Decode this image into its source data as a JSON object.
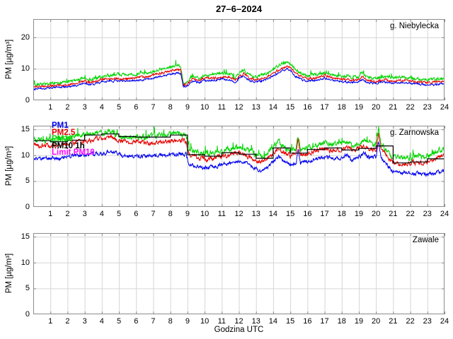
{
  "title": "27–6–2024",
  "xlabel": "Godzina UTC",
  "colors": {
    "pm1": "#0000ee",
    "pm2_5": "#e60000",
    "pm10": "#00d400",
    "pm10_1h": "#000000",
    "limit_pm10": "#ff00ff",
    "frame": "#8c8c8c",
    "grid": "#d6d6d6"
  },
  "legend": {
    "location": "upper-left of middle panel",
    "entries": [
      {
        "label": "PM1",
        "color": "#0000ee"
      },
      {
        "label": "PM2.5",
        "color": "#e60000"
      },
      {
        "label": "PM10",
        "color": "#00d400"
      },
      {
        "label": "PM10 1h",
        "color": "#000000"
      },
      {
        "label": "Limit PM10",
        "color": "#ff00ff"
      }
    ]
  },
  "chart_data": [
    {
      "type": "line",
      "station": "g. Niebylecka",
      "xlabel": "",
      "ylabel": "PM [µg/m³]",
      "xlim": [
        0,
        24
      ],
      "ylim": [
        0,
        25.8
      ],
      "xticks": [
        1,
        2,
        3,
        4,
        5,
        6,
        7,
        8,
        9,
        10,
        11,
        12,
        13,
        14,
        15,
        16,
        17,
        18,
        19,
        20,
        21,
        22,
        23,
        24
      ],
      "yticks": [
        0,
        10,
        20
      ],
      "grid": true,
      "series": [
        {
          "name": "PM1",
          "color": "#0000ee",
          "noise": 0.32,
          "x": [
            0,
            0.5,
            1,
            1.5,
            2,
            2.5,
            3,
            3.3,
            3.6,
            4,
            4.5,
            5,
            5.5,
            6,
            6.5,
            7,
            7.5,
            8,
            8.4,
            8.6,
            8.75,
            9,
            9.3,
            9.7,
            10,
            10.5,
            11,
            11.5,
            11.8,
            12,
            12.3,
            12.6,
            12.9,
            13.2,
            13.6,
            14,
            14.4,
            14.8,
            15,
            15.3,
            15.7,
            16,
            16.5,
            17,
            17.3,
            17.7,
            18,
            18.5,
            19,
            19.2,
            19.5,
            20,
            20.5,
            21,
            21.5,
            22,
            22.5,
            23,
            23.5,
            24
          ],
          "y": [
            3.6,
            3.8,
            4.0,
            4.1,
            4.4,
            4.7,
            5.5,
            4.9,
            5.2,
            5.8,
            6.0,
            6.3,
            6.1,
            6.4,
            6.6,
            7.1,
            7.8,
            8.3,
            8.8,
            8.5,
            4.4,
            4.7,
            6.1,
            5.5,
            6.2,
            6.4,
            6.7,
            6.5,
            5.6,
            6.9,
            7.7,
            6.4,
            5.7,
            6.0,
            6.7,
            7.7,
            9.0,
            9.9,
            9.4,
            7.7,
            6.5,
            6.2,
            6.3,
            7.1,
            6.6,
            6.1,
            5.9,
            5.8,
            5.8,
            6.7,
            5.6,
            5.4,
            5.7,
            5.5,
            5.6,
            5.4,
            5.2,
            5.0,
            5.1,
            5.2
          ]
        },
        {
          "name": "PM2.5",
          "color": "#e60000",
          "noise": 0.38,
          "x": [
            0,
            0.5,
            1,
            1.5,
            2,
            2.5,
            3,
            3.3,
            3.6,
            4,
            4.5,
            5,
            5.5,
            6,
            6.5,
            7,
            7.5,
            8,
            8.4,
            8.6,
            8.75,
            9,
            9.3,
            9.7,
            10,
            10.5,
            11,
            11.5,
            11.8,
            12,
            12.3,
            12.6,
            12.9,
            13.2,
            13.6,
            14,
            14.4,
            14.8,
            15,
            15.3,
            15.7,
            16,
            16.5,
            17,
            17.3,
            17.7,
            18,
            18.5,
            19,
            19.2,
            19.5,
            20,
            20.5,
            21,
            21.5,
            22,
            22.5,
            23,
            23.5,
            24
          ],
          "y": [
            4.1,
            4.4,
            4.6,
            4.7,
            5.0,
            5.4,
            6.2,
            5.6,
            5.9,
            6.5,
            6.7,
            7.0,
            6.8,
            7.2,
            7.4,
            8.0,
            8.7,
            9.3,
            9.8,
            9.5,
            5.0,
            5.3,
            6.9,
            6.2,
            7.0,
            7.2,
            7.5,
            7.3,
            6.3,
            7.7,
            8.6,
            7.2,
            6.5,
            6.8,
            7.5,
            8.6,
            10.0,
            11.0,
            10.4,
            8.6,
            7.3,
            6.9,
            7.1,
            7.9,
            7.4,
            6.8,
            6.6,
            6.5,
            6.5,
            7.5,
            6.3,
            6.0,
            6.4,
            6.2,
            6.3,
            6.1,
            5.8,
            5.6,
            5.7,
            5.9
          ]
        },
        {
          "name": "PM10",
          "color": "#00d400",
          "noise": 0.5,
          "spiky": true,
          "x": [
            0,
            0.5,
            1,
            1.5,
            2,
            2.5,
            3,
            3.3,
            3.6,
            4,
            4.5,
            5,
            5.5,
            6,
            6.5,
            7,
            7.5,
            8,
            8.4,
            8.6,
            8.75,
            9,
            9.3,
            9.7,
            10,
            10.5,
            11,
            11.5,
            11.8,
            12,
            12.3,
            12.6,
            12.9,
            13.2,
            13.6,
            14,
            14.4,
            14.8,
            15,
            15.3,
            15.7,
            16,
            16.5,
            17,
            17.3,
            17.7,
            18,
            18.5,
            19,
            19.2,
            19.5,
            20,
            20.5,
            21,
            21.5,
            22,
            22.5,
            23,
            23.5,
            24
          ],
          "y": [
            4.8,
            5.1,
            5.4,
            5.5,
            5.9,
            6.3,
            7.2,
            6.5,
            6.9,
            7.5,
            7.8,
            8.2,
            7.9,
            8.3,
            8.5,
            9.2,
            10.0,
            10.6,
            11.2,
            10.8,
            5.6,
            5.9,
            7.8,
            7.0,
            8.0,
            8.2,
            8.6,
            8.4,
            7.2,
            8.8,
            9.8,
            8.2,
            7.4,
            7.8,
            8.6,
            9.8,
            11.4,
            12.4,
            11.8,
            9.8,
            8.4,
            7.9,
            8.1,
            9.0,
            8.5,
            7.8,
            7.6,
            7.4,
            7.4,
            8.6,
            7.2,
            6.9,
            7.4,
            7.1,
            7.3,
            7.0,
            6.7,
            6.4,
            6.6,
            6.8
          ]
        }
      ]
    },
    {
      "type": "line",
      "station": "g. Zarnowska",
      "xlabel": "",
      "ylabel": "PM [µg/m³]",
      "xlim": [
        0,
        24
      ],
      "ylim": [
        0,
        15.7
      ],
      "xticks": [
        1,
        2,
        3,
        4,
        5,
        6,
        7,
        8,
        9,
        10,
        11,
        12,
        13,
        14,
        15,
        16,
        17,
        18,
        19,
        20,
        21,
        22,
        23,
        24
      ],
      "yticks": [
        0,
        5,
        10,
        15
      ],
      "grid": true,
      "has_legend": true,
      "series": [
        {
          "name": "PM1",
          "color": "#0000ee",
          "noise": 0.38,
          "x": [
            0,
            0.5,
            1,
            1.5,
            2,
            2.5,
            3,
            3.5,
            4,
            4.5,
            5,
            5.5,
            6,
            6.5,
            7,
            7.5,
            8,
            8.5,
            8.9,
            9.1,
            9.5,
            10,
            10.5,
            11,
            11.5,
            12,
            12.5,
            13,
            13.3,
            13.7,
            14,
            14.3,
            14.6,
            15,
            15.35,
            15.45,
            15.6,
            16,
            16.5,
            17,
            17.5,
            18,
            18.3,
            18.6,
            19,
            19.3,
            19.6,
            20,
            20.15,
            20.3,
            20.6,
            21,
            21.5,
            22,
            22.5,
            23,
            23.5,
            24
          ],
          "y": [
            9.5,
            9.3,
            9.4,
            9.3,
            9.7,
            9.9,
            10.2,
            10.3,
            10.3,
            10.6,
            10.0,
            9.8,
            9.8,
            9.6,
            9.8,
            10.0,
            10.2,
            10.4,
            10.1,
            8.3,
            7.9,
            7.5,
            7.7,
            8.1,
            8.5,
            8.8,
            8.3,
            7.3,
            6.9,
            7.7,
            8.8,
            9.8,
            8.9,
            8.1,
            8.5,
            11.1,
            8.3,
            8.7,
            9.3,
            9.5,
            9.3,
            9.5,
            10.1,
            9.1,
            9.7,
            10.3,
            9.5,
            9.7,
            12.7,
            9.3,
            8.3,
            6.9,
            6.7,
            6.8,
            6.6,
            6.3,
            6.6,
            7.0
          ]
        },
        {
          "name": "PM2.5",
          "color": "#e60000",
          "noise": 0.45,
          "x": [
            0,
            0.5,
            1,
            1.5,
            2,
            2.5,
            3,
            3.5,
            4,
            4.5,
            5,
            5.5,
            6,
            6.5,
            7,
            7.5,
            8,
            8.5,
            8.9,
            9.1,
            9.5,
            10,
            10.5,
            11,
            11.5,
            12,
            12.5,
            13,
            13.3,
            13.7,
            14,
            14.3,
            14.6,
            15,
            15.35,
            15.45,
            15.6,
            16,
            16.5,
            17,
            17.5,
            18,
            18.3,
            18.6,
            19,
            19.3,
            19.6,
            20,
            20.15,
            20.3,
            20.6,
            21,
            21.5,
            22,
            22.5,
            23,
            23.5,
            24
          ],
          "y": [
            12.0,
            11.8,
            11.9,
            11.8,
            12.2,
            12.4,
            12.9,
            13.1,
            13.2,
            13.5,
            12.7,
            12.5,
            12.5,
            12.3,
            12.5,
            12.7,
            12.9,
            13.1,
            12.7,
            10.0,
            9.6,
            9.2,
            9.4,
            9.8,
            10.2,
            10.5,
            10.0,
            9.0,
            8.6,
            9.4,
            10.5,
            11.5,
            10.6,
            9.8,
            10.3,
            13.0,
            10.0,
            10.3,
            10.9,
            11.1,
            10.9,
            11.1,
            11.7,
            10.8,
            11.3,
            11.9,
            11.1,
            11.3,
            14.3,
            11.0,
            10.0,
            8.6,
            8.4,
            8.6,
            8.8,
            8.6,
            9.4,
            10.0
          ]
        },
        {
          "name": "PM10",
          "color": "#00d400",
          "noise": 0.55,
          "spiky": true,
          "x": [
            0,
            0.5,
            1,
            1.5,
            2,
            2.5,
            3,
            3.5,
            4,
            4.5,
            5,
            5.5,
            6,
            6.5,
            7,
            7.5,
            8,
            8.5,
            8.9,
            9.1,
            9.5,
            10,
            10.5,
            11,
            11.5,
            12,
            12.5,
            13,
            13.3,
            13.7,
            14,
            14.3,
            14.6,
            15,
            15.35,
            15.45,
            15.6,
            16,
            16.5,
            17,
            17.5,
            18,
            18.3,
            18.6,
            19,
            19.3,
            19.6,
            20,
            20.15,
            20.3,
            20.6,
            21,
            21.5,
            22,
            22.5,
            23,
            23.5,
            24
          ],
          "y": [
            13.2,
            13.0,
            13.1,
            13.0,
            13.4,
            13.6,
            14.1,
            14.3,
            14.3,
            14.5,
            13.8,
            13.6,
            13.6,
            13.4,
            13.6,
            13.8,
            14.0,
            14.2,
            13.8,
            11.0,
            10.6,
            10.2,
            10.4,
            10.8,
            11.2,
            11.5,
            11.0,
            10.0,
            9.6,
            10.4,
            11.5,
            12.5,
            11.6,
            10.8,
            11.2,
            13.8,
            11.0,
            11.4,
            12.0,
            12.2,
            12.0,
            12.2,
            12.8,
            11.8,
            12.4,
            13.0,
            12.2,
            12.4,
            15.4,
            12.0,
            11.0,
            9.6,
            9.4,
            9.6,
            9.8,
            9.6,
            10.4,
            11.0
          ]
        }
      ],
      "hourly": {
        "name": "PM10 1h",
        "color": "#000000",
        "values": [
          12.8,
          12.6,
          12.9,
          13.9,
          14.1,
          13.6,
          13.5,
          13.5,
          13.9,
          10.1,
          9.8,
          10.5,
          10.2,
          9.4,
          11.4,
          10.4,
          11.1,
          11.4,
          11.0,
          11.3,
          11.8,
          8.5,
          8.7,
          9.3
        ]
      }
    },
    {
      "type": "line",
      "station": "Zawale",
      "xlabel": "Godzina UTC",
      "ylabel": "PM [µg/m³]",
      "xlim": [
        0,
        24
      ],
      "ylim": [
        0,
        15.7
      ],
      "xticks": [
        1,
        2,
        3,
        4,
        5,
        6,
        7,
        8,
        9,
        10,
        11,
        12,
        13,
        14,
        15,
        16,
        17,
        18,
        19,
        20,
        21,
        22,
        23,
        24
      ],
      "yticks": [
        0,
        5,
        10,
        15
      ],
      "grid": true,
      "series": []
    }
  ]
}
